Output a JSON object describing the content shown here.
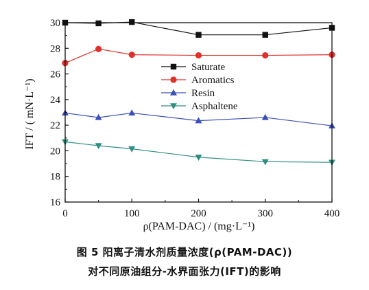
{
  "chart_data": {
    "type": "line",
    "x": [
      0,
      50,
      100,
      200,
      300,
      400
    ],
    "series": [
      {
        "name": "Saturate",
        "values": [
          30.0,
          29.95,
          30.05,
          29.05,
          29.05,
          29.6
        ],
        "color": "#111111",
        "marker": "square"
      },
      {
        "name": "Aromatics",
        "values": [
          26.85,
          27.95,
          27.5,
          27.45,
          27.45,
          27.5
        ],
        "color": "#e0302a",
        "marker": "circle"
      },
      {
        "name": "Resin",
        "values": [
          22.95,
          22.6,
          22.95,
          22.35,
          22.6,
          21.95
        ],
        "color": "#3b4fb8",
        "marker": "triangle-up"
      },
      {
        "name": "Asphaltene",
        "values": [
          20.7,
          20.4,
          20.15,
          19.5,
          19.15,
          19.1
        ],
        "color": "#2f8f84",
        "marker": "triangle-down"
      }
    ],
    "xlim": [
      0,
      400
    ],
    "ylim": [
      16,
      30
    ],
    "xticks": [
      "0",
      "100",
      "200",
      "300",
      "400"
    ],
    "yticks": [
      "16",
      "18",
      "20",
      "22",
      "24",
      "26",
      "28",
      "30"
    ],
    "xlabel": "ρ(PAM-DAC) / (mg·L⁻¹)",
    "ylabel": "IFT / ( mN·L⁻¹)",
    "legend_placement": "upper-center",
    "grid": false
  },
  "caption": {
    "line1": "图 5   阳离子清水剂质量浓度(ρ(PAM-DAC))",
    "line2": "对不同原油组分-水界面张力(IFT)的影响"
  }
}
